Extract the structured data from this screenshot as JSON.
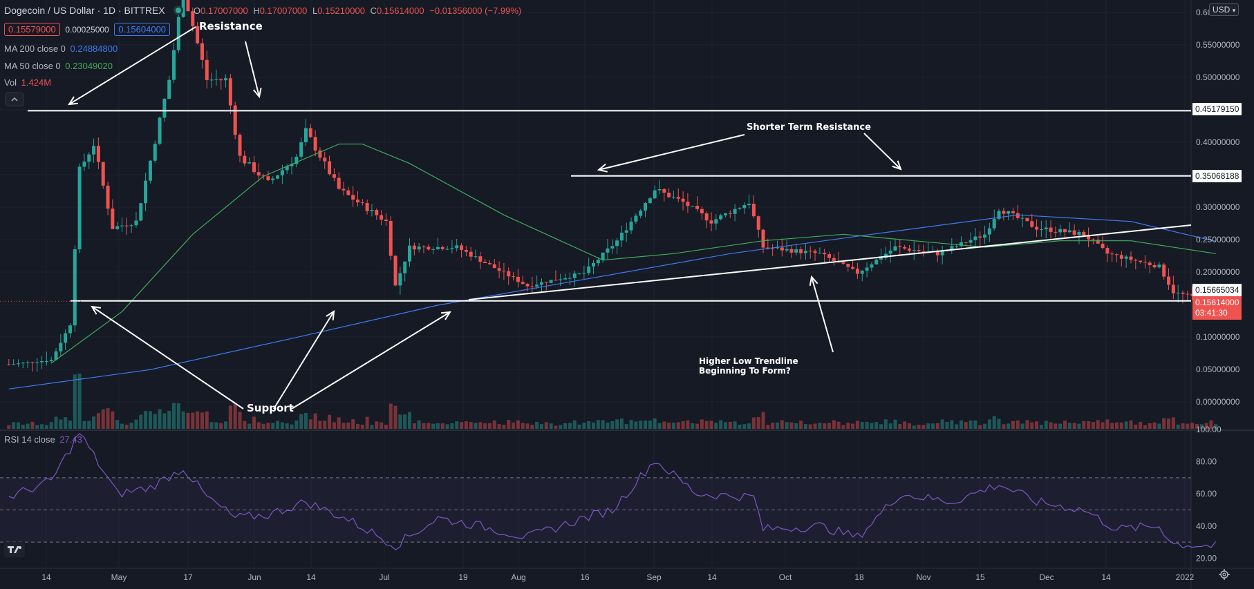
{
  "header": {
    "symbol": "Dogecoin / US Dollar · 1D · BITTREX",
    "o_label": "O",
    "o_value": "0.17007000",
    "h_label": "H",
    "h_value": "0.17007000",
    "l_label": "L",
    "l_value": "0.15210000",
    "c_label": "C",
    "c_value": "0.15614000",
    "change": "−0.01356000 (−7.99%)",
    "bid": "0.15579000",
    "spread": "0.00025000",
    "ask": "0.15604000"
  },
  "indicators": {
    "ma200_label": "MA 200 close 0",
    "ma200_value": "0.24884800",
    "ma50_label": "MA 50 close 0",
    "ma50_value": "0.23049020",
    "vol_label": "Vol",
    "vol_value": "1.424M",
    "rsi_label": "RSI 14 close",
    "rsi_value": "27.43"
  },
  "currency_button": "USD",
  "annotations": {
    "resistance": "Resistance",
    "shorter_term": "Shorter Term Resistance",
    "support": "Support",
    "higher_low_1": "Higher Low Trendline",
    "higher_low_2": "Beginning To Form?"
  },
  "colors": {
    "up": "#26a69a",
    "down": "#ef5350",
    "ma200": "#3f7cf0",
    "ma50": "#3fae5a",
    "rsi": "#7e57c2",
    "bg": "#161a25"
  },
  "chart_data": {
    "type": "candlestick",
    "price_axis": {
      "ticks": [
        "0.6000000",
        "0.55000000",
        "0.50000000",
        "0.45000000",
        "0.40000000",
        "0.35000000",
        "0.30000000",
        "0.25000000",
        "0.20000000",
        "0.15000000",
        "0.10000000",
        "0.05000000",
        "0.00000000"
      ]
    },
    "time_axis": {
      "ticks": [
        "14",
        "May",
        "17",
        "Jun",
        "14",
        "Jul",
        "19",
        "Aug",
        "16",
        "Sep",
        "14",
        "Oct",
        "18",
        "Nov",
        "15",
        "Dec",
        "14",
        "2022"
      ]
    },
    "price_anchors": [
      {
        "date": "2021-04-01",
        "price": 0.058
      },
      {
        "date": "2021-04-10",
        "price": 0.065
      },
      {
        "date": "2021-04-14",
        "price": 0.12
      },
      {
        "date": "2021-04-16",
        "price": 0.36
      },
      {
        "date": "2021-04-19",
        "price": 0.4
      },
      {
        "date": "2021-04-23",
        "price": 0.27
      },
      {
        "date": "2021-04-28",
        "price": 0.28
      },
      {
        "date": "2021-05-05",
        "price": 0.5
      },
      {
        "date": "2021-05-08",
        "price": 0.64
      },
      {
        "date": "2021-05-13",
        "price": 0.5
      },
      {
        "date": "2021-05-17",
        "price": 0.5
      },
      {
        "date": "2021-05-20",
        "price": 0.38
      },
      {
        "date": "2021-05-26",
        "price": 0.34
      },
      {
        "date": "2021-06-01",
        "price": 0.38
      },
      {
        "date": "2021-06-03",
        "price": 0.42
      },
      {
        "date": "2021-06-10",
        "price": 0.33
      },
      {
        "date": "2021-06-20",
        "price": 0.28
      },
      {
        "date": "2021-06-22",
        "price": 0.18
      },
      {
        "date": "2021-06-25",
        "price": 0.24
      },
      {
        "date": "2021-07-05",
        "price": 0.24
      },
      {
        "date": "2021-07-20",
        "price": 0.18
      },
      {
        "date": "2021-08-01",
        "price": 0.2
      },
      {
        "date": "2021-08-08",
        "price": 0.25
      },
      {
        "date": "2021-08-16",
        "price": 0.33
      },
      {
        "date": "2021-08-22",
        "price": 0.31
      },
      {
        "date": "2021-08-28",
        "price": 0.28
      },
      {
        "date": "2021-09-05",
        "price": 0.31
      },
      {
        "date": "2021-09-08",
        "price": 0.24
      },
      {
        "date": "2021-09-20",
        "price": 0.23
      },
      {
        "date": "2021-09-28",
        "price": 0.2
      },
      {
        "date": "2021-10-06",
        "price": 0.24
      },
      {
        "date": "2021-10-15",
        "price": 0.23
      },
      {
        "date": "2021-10-25",
        "price": 0.26
      },
      {
        "date": "2021-10-28",
        "price": 0.3
      },
      {
        "date": "2021-11-05",
        "price": 0.27
      },
      {
        "date": "2021-11-15",
        "price": 0.26
      },
      {
        "date": "2021-11-20",
        "price": 0.23
      },
      {
        "date": "2021-12-01",
        "price": 0.21
      },
      {
        "date": "2021-12-04",
        "price": 0.17
      },
      {
        "date": "2021-12-13",
        "price": 0.156
      }
    ],
    "ma50": [
      {
        "date": "2021-04-10",
        "price": 0.06
      },
      {
        "date": "2021-04-25",
        "price": 0.14
      },
      {
        "date": "2021-05-10",
        "price": 0.26
      },
      {
        "date": "2021-05-25",
        "price": 0.35
      },
      {
        "date": "2021-06-10",
        "price": 0.4
      },
      {
        "date": "2021-06-15",
        "price": 0.4
      },
      {
        "date": "2021-06-25",
        "price": 0.37
      },
      {
        "date": "2021-07-15",
        "price": 0.29
      },
      {
        "date": "2021-08-05",
        "price": 0.22
      },
      {
        "date": "2021-08-20",
        "price": 0.23
      },
      {
        "date": "2021-09-08",
        "price": 0.25
      },
      {
        "date": "2021-09-25",
        "price": 0.26
      },
      {
        "date": "2021-10-10",
        "price": 0.25
      },
      {
        "date": "2021-10-25",
        "price": 0.24
      },
      {
        "date": "2021-11-10",
        "price": 0.25
      },
      {
        "date": "2021-11-25",
        "price": 0.25
      },
      {
        "date": "2021-12-13",
        "price": 0.23
      }
    ],
    "ma200": [
      {
        "date": "2021-04-01",
        "price": 0.02
      },
      {
        "date": "2021-05-01",
        "price": 0.05
      },
      {
        "date": "2021-06-01",
        "price": 0.1
      },
      {
        "date": "2021-07-01",
        "price": 0.15
      },
      {
        "date": "2021-08-01",
        "price": 0.19
      },
      {
        "date": "2021-09-01",
        "price": 0.23
      },
      {
        "date": "2021-10-01",
        "price": 0.26
      },
      {
        "date": "2021-11-01",
        "price": 0.29
      },
      {
        "date": "2021-11-25",
        "price": 0.28
      },
      {
        "date": "2021-12-13",
        "price": 0.249
      }
    ],
    "rsi": {
      "ticks": [
        "100.00",
        "80.00",
        "60.00",
        "40.00",
        "20.00"
      ],
      "levels": [
        70,
        50,
        30
      ],
      "anchors": [
        {
          "date": "2021-04-01",
          "rsi": 58
        },
        {
          "date": "2021-04-10",
          "rsi": 68
        },
        {
          "date": "2021-04-16",
          "rsi": 98
        },
        {
          "date": "2021-04-24",
          "rsi": 60
        },
        {
          "date": "2021-05-01",
          "rsi": 64
        },
        {
          "date": "2021-05-08",
          "rsi": 76
        },
        {
          "date": "2021-05-13",
          "rsi": 58
        },
        {
          "date": "2021-05-19",
          "rsi": 45
        },
        {
          "date": "2021-05-26",
          "rsi": 47
        },
        {
          "date": "2021-06-03",
          "rsi": 55
        },
        {
          "date": "2021-06-12",
          "rsi": 44
        },
        {
          "date": "2021-06-22",
          "rsi": 28
        },
        {
          "date": "2021-07-01",
          "rsi": 45
        },
        {
          "date": "2021-07-10",
          "rsi": 40
        },
        {
          "date": "2021-07-20",
          "rsi": 33
        },
        {
          "date": "2021-08-01",
          "rsi": 45
        },
        {
          "date": "2021-08-07",
          "rsi": 50
        },
        {
          "date": "2021-08-16",
          "rsi": 81
        },
        {
          "date": "2021-08-25",
          "rsi": 60
        },
        {
          "date": "2021-09-06",
          "rsi": 58
        },
        {
          "date": "2021-09-08",
          "rsi": 38
        },
        {
          "date": "2021-09-20",
          "rsi": 40
        },
        {
          "date": "2021-09-28",
          "rsi": 33
        },
        {
          "date": "2021-10-07",
          "rsi": 60
        },
        {
          "date": "2021-10-18",
          "rsi": 55
        },
        {
          "date": "2021-10-28",
          "rsi": 66
        },
        {
          "date": "2021-11-05",
          "rsi": 55
        },
        {
          "date": "2021-11-15",
          "rsi": 50
        },
        {
          "date": "2021-11-22",
          "rsi": 38
        },
        {
          "date": "2021-12-01",
          "rsi": 40
        },
        {
          "date": "2021-12-04",
          "rsi": 29
        },
        {
          "date": "2021-12-13",
          "rsi": 27.43
        }
      ]
    },
    "horizontal_levels": [
      {
        "price": 0.4517915,
        "label": "0.45179150"
      },
      {
        "price": 0.35068188,
        "label": "0.35068188"
      },
      {
        "price": 0.15665034,
        "label": "0.15665034"
      }
    ],
    "last_price": {
      "price": 0.15614,
      "label": "0.15614000",
      "countdown": "03:41:30"
    }
  }
}
